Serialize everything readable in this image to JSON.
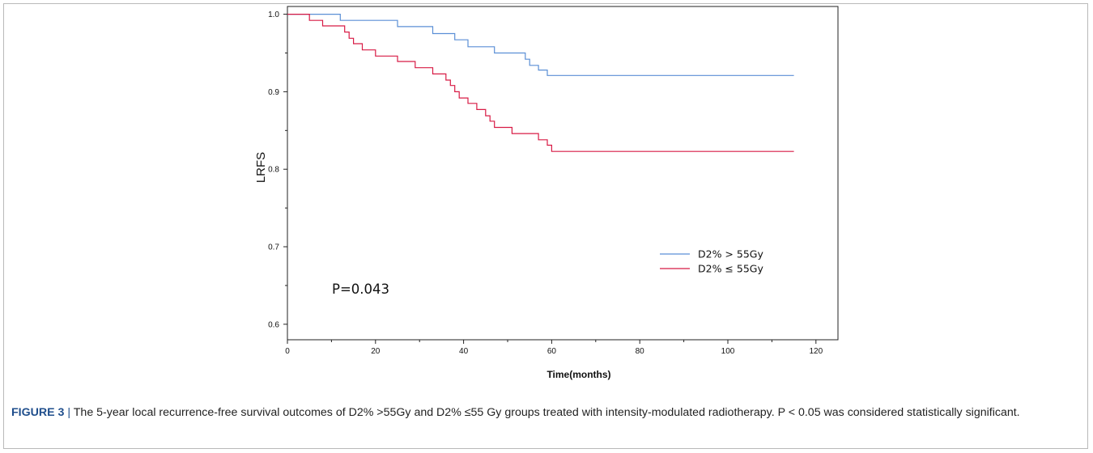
{
  "figure": {
    "label": "FIGURE 3",
    "separator": "|",
    "caption": "The 5-year local recurrence-free survival outcomes of D2% >55Gy and D2% ≤55 Gy groups treated with intensity-modulated radiotherapy. P < 0.05 was considered statistically significant."
  },
  "chart_data": {
    "type": "line",
    "subtype": "kaplan-meier step",
    "title": "",
    "xlabel": "Time(months)",
    "ylabel": "LRFS",
    "xlim": [
      0,
      125
    ],
    "ylim": [
      0.58,
      1.01
    ],
    "x_ticks": [
      0,
      20,
      40,
      60,
      80,
      100,
      120
    ],
    "y_ticks": [
      0.6,
      0.7,
      0.8,
      0.9,
      1.0
    ],
    "y_tick_labels": [
      "0.6",
      "0.7",
      "0.8",
      "0.9",
      "1.0"
    ],
    "grid": false,
    "legend_position": "right-middle",
    "annotation": "P=0.043",
    "series": [
      {
        "name": "D2% > 55Gy",
        "color": "#5b8fd6",
        "x": [
          0,
          12,
          25,
          33,
          38,
          41,
          47,
          54,
          55,
          57,
          59,
          115
        ],
        "y": [
          1.0,
          0.992,
          0.984,
          0.975,
          0.967,
          0.958,
          0.95,
          0.942,
          0.934,
          0.928,
          0.921,
          0.921
        ]
      },
      {
        "name": "D2% ≤ 55Gy",
        "color": "#d81b45",
        "x": [
          0,
          5,
          8,
          13,
          14,
          15,
          17,
          20,
          25,
          29,
          33,
          36,
          37,
          38,
          39,
          41,
          43,
          45,
          46,
          47,
          51,
          57,
          59,
          60,
          115
        ],
        "y": [
          1.0,
          0.992,
          0.985,
          0.977,
          0.969,
          0.962,
          0.954,
          0.946,
          0.939,
          0.931,
          0.923,
          0.915,
          0.908,
          0.9,
          0.892,
          0.885,
          0.877,
          0.869,
          0.862,
          0.854,
          0.846,
          0.838,
          0.831,
          0.823,
          0.823
        ]
      }
    ]
  }
}
